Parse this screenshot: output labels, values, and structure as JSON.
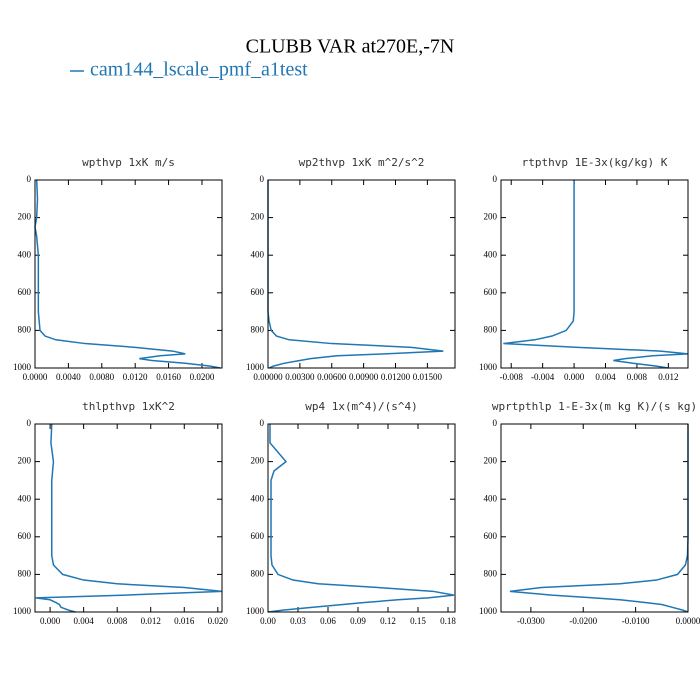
{
  "title": "CLUBB VAR at270E,-7N",
  "legend": {
    "name": "cam144_lscale_pmf_a1test",
    "color": "#1f77b4"
  },
  "chart_data": [
    {
      "type": "line",
      "title": "wpthvp  1xK m/s",
      "y": [
        0,
        100,
        200,
        250,
        300,
        400,
        500,
        600,
        700,
        750,
        800,
        830,
        850,
        870,
        890,
        910,
        925,
        935,
        950,
        960,
        975,
        990,
        1000
      ],
      "values": [
        0.0002,
        0.0003,
        0.0002,
        0.0,
        0.0002,
        0.0004,
        0.0004,
        0.0004,
        0.0004,
        0.0005,
        0.0006,
        0.0012,
        0.0025,
        0.006,
        0.012,
        0.0165,
        0.018,
        0.015,
        0.0125,
        0.014,
        0.018,
        0.021,
        0.0222
      ],
      "xlim": [
        0,
        0.0224
      ],
      "xticks": [
        {
          "value": 0,
          "label": "0.0000"
        },
        {
          "value": 0.004,
          "label": "0.0040"
        },
        {
          "value": 0.008,
          "label": "0.0080"
        },
        {
          "value": 0.012,
          "label": "0.0120"
        },
        {
          "value": 0.016,
          "label": "0.0160"
        },
        {
          "value": 0.02,
          "label": "0.0200"
        }
      ],
      "ylim": [
        1000,
        0
      ],
      "yticks": [
        0,
        200,
        400,
        600,
        800,
        1000
      ]
    },
    {
      "type": "line",
      "title": "wp2thvp  1xK m^2/s^2",
      "y": [
        0,
        100,
        200,
        250,
        300,
        400,
        500,
        600,
        700,
        750,
        800,
        830,
        850,
        870,
        890,
        910,
        925,
        935,
        950,
        960,
        975,
        990,
        1000
      ],
      "values": [
        0,
        0,
        0,
        0,
        0,
        0,
        0,
        0,
        0,
        0.0001,
        0.0003,
        0.0008,
        0.002,
        0.006,
        0.0135,
        0.0165,
        0.011,
        0.0065,
        0.004,
        0.003,
        0.0015,
        0.0005,
        0.0001
      ],
      "xlim": [
        0,
        0.0176
      ],
      "xticks": [
        {
          "value": 0,
          "label": "0.00000"
        },
        {
          "value": 0.003,
          "label": "0.00300"
        },
        {
          "value": 0.006,
          "label": "0.00600"
        },
        {
          "value": 0.009,
          "label": "0.00900"
        },
        {
          "value": 0.012,
          "label": "0.01200"
        },
        {
          "value": 0.015,
          "label": "0.01500"
        }
      ],
      "ylim": [
        1000,
        0
      ],
      "yticks": [
        0,
        200,
        400,
        600,
        800,
        1000
      ]
    },
    {
      "type": "line",
      "title": "rtpthvp  1E-3x(kg/kg) K",
      "y": [
        0,
        100,
        200,
        250,
        300,
        400,
        500,
        600,
        700,
        750,
        800,
        830,
        850,
        870,
        890,
        910,
        925,
        935,
        950,
        960,
        975,
        990,
        1000
      ],
      "values": [
        0,
        0,
        0,
        0,
        0,
        0,
        0,
        0,
        0,
        -0.0001,
        -0.001,
        -0.0028,
        -0.005,
        -0.009,
        0.0005,
        0.011,
        0.0145,
        0.01,
        0.0065,
        0.005,
        0.0075,
        0.0105,
        0.012
      ],
      "xlim": [
        -0.0093,
        0.0145
      ],
      "xticks": [
        {
          "value": -0.008,
          "label": "-0.008"
        },
        {
          "value": -0.004,
          "label": "-0.004"
        },
        {
          "value": 0,
          "label": "0.000"
        },
        {
          "value": 0.004,
          "label": "0.004"
        },
        {
          "value": 0.008,
          "label": "0.008"
        },
        {
          "value": 0.012,
          "label": "0.012"
        }
      ],
      "ylim": [
        1000,
        0
      ],
      "yticks": [
        0,
        200,
        400,
        600,
        800,
        1000
      ]
    },
    {
      "type": "line",
      "title": "thlpthvp  1xK^2",
      "y": [
        0,
        100,
        200,
        250,
        300,
        400,
        500,
        600,
        700,
        750,
        800,
        830,
        850,
        870,
        890,
        910,
        925,
        935,
        950,
        960,
        975,
        990,
        1000
      ],
      "values": [
        0.0002,
        0.0001,
        0.0004,
        0.0003,
        0.0002,
        0.0002,
        0.0002,
        0.0002,
        0.0002,
        0.0004,
        0.0015,
        0.004,
        0.008,
        0.016,
        0.0205,
        0.009,
        -0.0017,
        0.0,
        0.0007,
        0.0011,
        0.0013,
        0.0022,
        0.003
      ],
      "xlim": [
        -0.0018,
        0.0205
      ],
      "xticks": [
        {
          "value": 0,
          "label": "0.000"
        },
        {
          "value": 0.004,
          "label": "0.004"
        },
        {
          "value": 0.008,
          "label": "0.008"
        },
        {
          "value": 0.012,
          "label": "0.012"
        },
        {
          "value": 0.016,
          "label": "0.016"
        },
        {
          "value": 0.02,
          "label": "0.020"
        }
      ],
      "ylim": [
        1000,
        0
      ],
      "yticks": [
        0,
        200,
        400,
        600,
        800,
        1000
      ]
    },
    {
      "type": "line",
      "title": "wp4  1x(m^4)/(s^4)",
      "y": [
        0,
        100,
        200,
        250,
        300,
        400,
        500,
        600,
        700,
        750,
        800,
        830,
        850,
        870,
        890,
        910,
        925,
        935,
        950,
        960,
        975,
        990,
        1000
      ],
      "values": [
        0.002,
        0.002,
        0.018,
        0.006,
        0.003,
        0.003,
        0.003,
        0.003,
        0.003,
        0.004,
        0.01,
        0.025,
        0.05,
        0.11,
        0.165,
        0.186,
        0.16,
        0.13,
        0.095,
        0.075,
        0.045,
        0.015,
        0.0
      ],
      "xlim": [
        0,
        0.187
      ],
      "xticks": [
        {
          "value": 0,
          "label": "0.00"
        },
        {
          "value": 0.03,
          "label": "0.03"
        },
        {
          "value": 0.06,
          "label": "0.06"
        },
        {
          "value": 0.09,
          "label": "0.09"
        },
        {
          "value": 0.12,
          "label": "0.12"
        },
        {
          "value": 0.15,
          "label": "0.15"
        },
        {
          "value": 0.18,
          "label": "0.18"
        }
      ],
      "ylim": [
        1000,
        0
      ],
      "yticks": [
        0,
        200,
        400,
        600,
        800,
        1000
      ]
    },
    {
      "type": "line",
      "title": "wprtpthlp  1-E-3x(m kg K)/(s kg)",
      "y": [
        0,
        100,
        200,
        250,
        300,
        400,
        500,
        600,
        700,
        750,
        800,
        830,
        850,
        870,
        890,
        910,
        925,
        935,
        950,
        960,
        975,
        990,
        1000
      ],
      "values": [
        0,
        0,
        0,
        0,
        0,
        0,
        0,
        0,
        -0.0001,
        -0.0005,
        -0.002,
        -0.006,
        -0.013,
        -0.028,
        -0.034,
        -0.026,
        -0.018,
        -0.013,
        -0.008,
        -0.005,
        -0.003,
        -0.001,
        0
      ],
      "xlim": [
        -0.0357,
        0
      ],
      "xticks": [
        {
          "value": -0.03,
          "label": "-0.0300"
        },
        {
          "value": -0.02,
          "label": "-0.0200"
        },
        {
          "value": -0.01,
          "label": "-0.0100"
        },
        {
          "value": 0,
          "label": "0.0000"
        }
      ],
      "ylim": [
        1000,
        0
      ],
      "yticks": [
        0,
        200,
        400,
        600,
        800,
        1000
      ]
    }
  ]
}
